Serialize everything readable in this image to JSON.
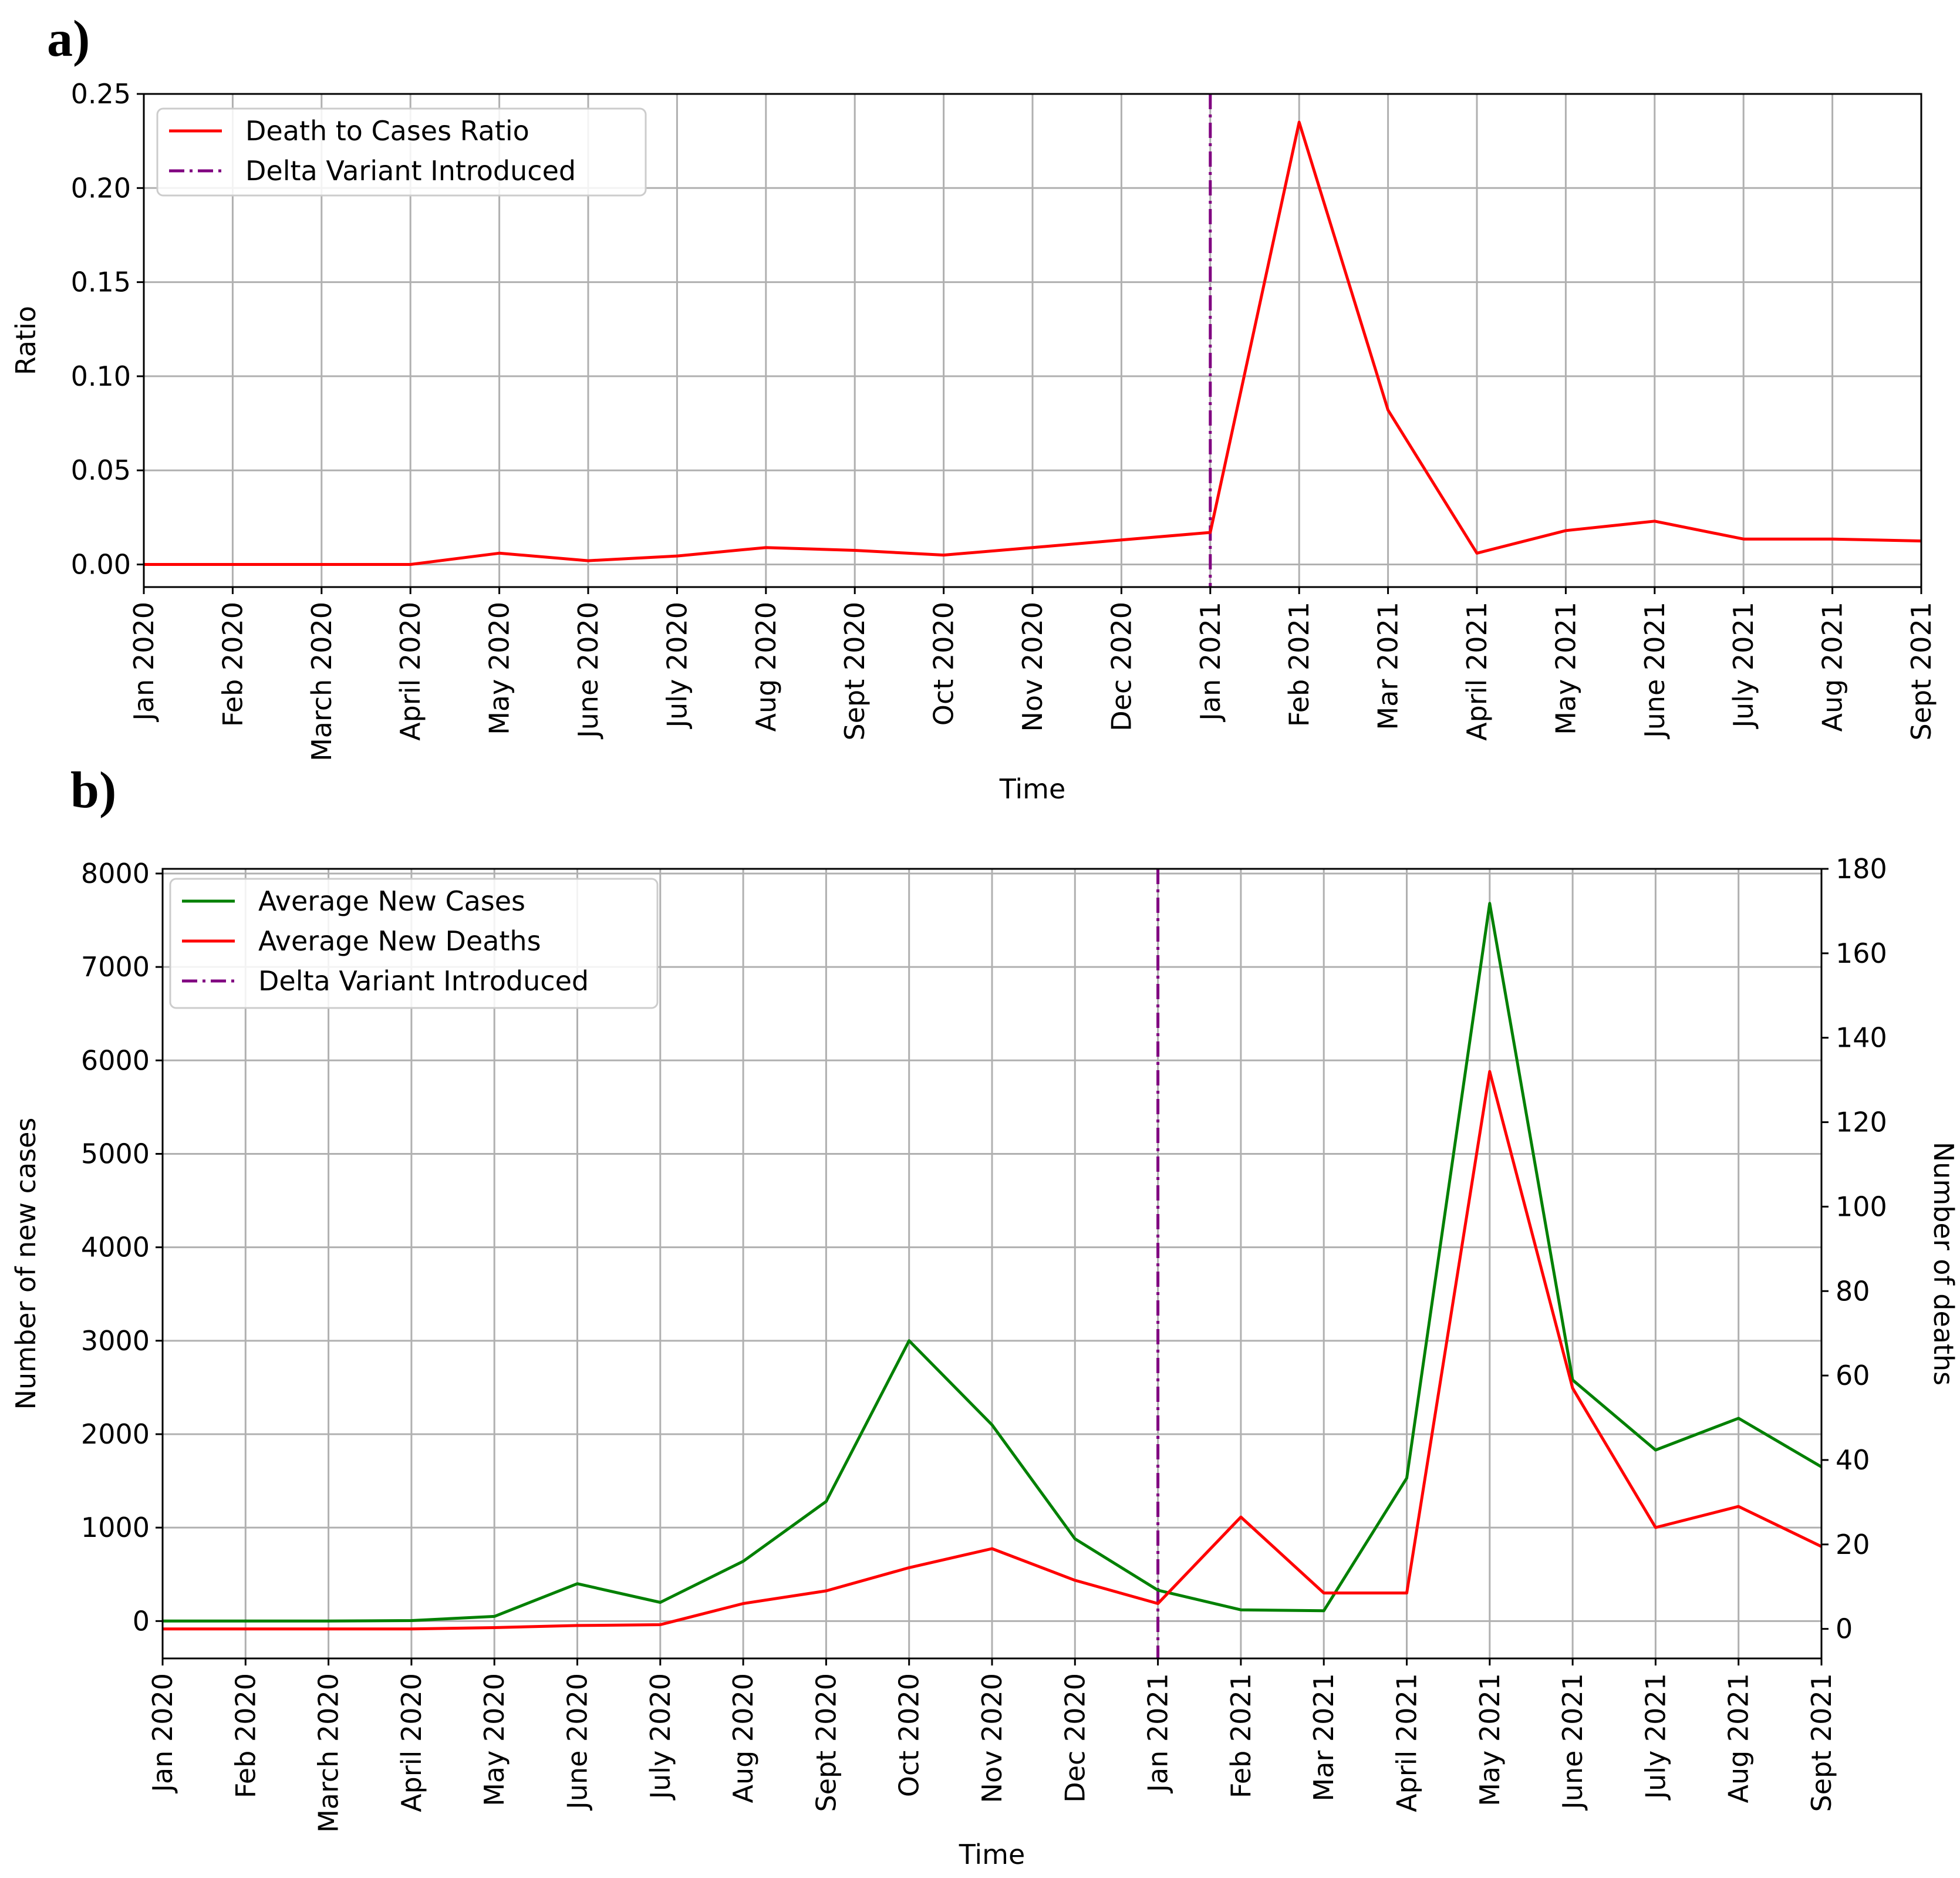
{
  "chart_data": [
    {
      "panel_label": "a)",
      "type": "line",
      "title": "",
      "xlabel": "Time",
      "ylabel": "Ratio",
      "categories": [
        "Jan 2020",
        "Feb 2020",
        "March 2020",
        "April 2020",
        "May 2020",
        "June 2020",
        "July 2020",
        "Aug 2020",
        "Sept 2020",
        "Oct 2020",
        "Nov 2020",
        "Dec 2020",
        "Jan 2021",
        "Feb 2021",
        "Mar 2021",
        "April 2021",
        "May 2021",
        "June 2021",
        "July 2021",
        "Aug 2021",
        "Sept 2021"
      ],
      "ylim": [
        -0.012,
        0.25
      ],
      "yticks": [
        "0.00",
        "0.05",
        "0.10",
        "0.15",
        "0.20",
        "0.25"
      ],
      "ytick_values": [
        0,
        0.05,
        0.1,
        0.15,
        0.2,
        0.25
      ],
      "grid": true,
      "legend_position": "top-left",
      "series": [
        {
          "name": "Death to Cases Ratio",
          "color": "#ff0000",
          "axis": "left",
          "values": [
            0.0,
            0.0,
            0.0,
            0.0,
            0.006,
            0.002,
            0.0045,
            0.009,
            0.0075,
            0.005,
            0.009,
            0.013,
            0.017,
            0.235,
            0.082,
            0.006,
            0.018,
            0.023,
            0.0135,
            0.0135,
            0.0125
          ]
        }
      ],
      "vline": {
        "name": "Delta Variant Introduced",
        "color": "#800080",
        "at_category": "Jan 2021"
      }
    },
    {
      "panel_label": "b)",
      "type": "line",
      "title": "",
      "xlabel": "Time",
      "ylabel": "Number of new cases",
      "ylabel_right": "Number of deaths",
      "categories": [
        "Jan 2020",
        "Feb 2020",
        "March 2020",
        "April 2020",
        "May 2020",
        "June 2020",
        "July 2020",
        "Aug 2020",
        "Sept 2020",
        "Oct 2020",
        "Nov 2020",
        "Dec 2020",
        "Jan 2021",
        "Feb 2021",
        "Mar 2021",
        "April 2021",
        "May 2021",
        "June 2021",
        "July 2021",
        "Aug 2021",
        "Sept 2021"
      ],
      "ylim": [
        -400,
        8050
      ],
      "yticks": [
        "0",
        "1000",
        "2000",
        "3000",
        "4000",
        "5000",
        "6000",
        "7000",
        "8000"
      ],
      "ytick_values": [
        0,
        1000,
        2000,
        3000,
        4000,
        5000,
        6000,
        7000,
        8000
      ],
      "ylim_right": [
        -7,
        180
      ],
      "yticks_right": [
        "0",
        "20",
        "40",
        "60",
        "80",
        "100",
        "120",
        "140",
        "160",
        "180"
      ],
      "ytick_values_right": [
        0,
        20,
        40,
        60,
        80,
        100,
        120,
        140,
        160,
        180
      ],
      "grid": true,
      "legend_position": "top-left",
      "series": [
        {
          "name": "Average New Cases",
          "color": "#008000",
          "axis": "left",
          "values": [
            0,
            0,
            0,
            5,
            50,
            400,
            200,
            640,
            1280,
            3000,
            2100,
            880,
            330,
            120,
            110,
            1530,
            7680,
            2580,
            1830,
            2170,
            1650
          ]
        },
        {
          "name": "Average New Deaths",
          "color": "#ff0000",
          "axis": "right",
          "values": [
            0,
            0,
            0,
            0,
            0.3,
            0.8,
            1,
            6,
            9,
            14.5,
            19,
            11.5,
            6,
            26.5,
            8.5,
            8.5,
            132,
            57,
            24,
            29,
            19.5
          ]
        }
      ],
      "vline": {
        "name": "Delta Variant Introduced",
        "color": "#800080",
        "at_category": "Jan 2021"
      }
    }
  ]
}
